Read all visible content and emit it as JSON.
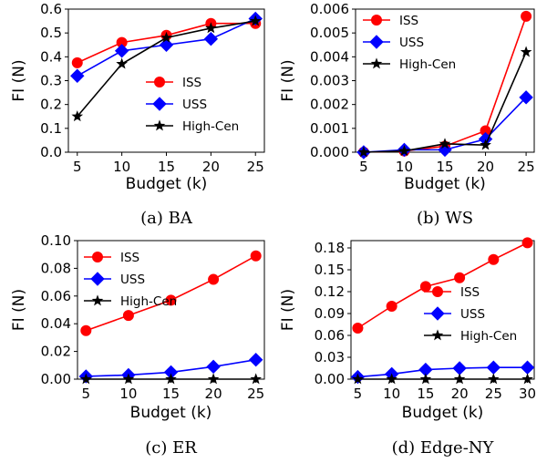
{
  "chart_data": [
    {
      "type": "line",
      "caption": "(a) BA",
      "xlabel": "Budget (k)",
      "ylabel": "FI (N)",
      "xlim": [
        4,
        26
      ],
      "ylim": [
        0.0,
        0.6
      ],
      "xticks": [
        5,
        10,
        15,
        20,
        25
      ],
      "yticks": [
        0.0,
        0.1,
        0.2,
        0.3,
        0.4,
        0.5,
        0.6
      ],
      "ytick_labels": [
        "0.0",
        "0.1",
        "0.2",
        "0.3",
        "0.4",
        "0.5",
        "0.6"
      ],
      "legend_position": "lower-right",
      "x": [
        5,
        10,
        15,
        20,
        25
      ],
      "series": [
        {
          "name": "ISS",
          "color": "#ff0000",
          "marker": "circle",
          "values": [
            0.375,
            0.46,
            0.49,
            0.54,
            0.54
          ]
        },
        {
          "name": "USS",
          "color": "#0000ff",
          "marker": "diamond",
          "values": [
            0.32,
            0.425,
            0.45,
            0.475,
            0.56
          ]
        },
        {
          "name": "High-Cen",
          "color": "#000000",
          "marker": "star",
          "values": [
            0.15,
            0.37,
            0.48,
            0.52,
            0.55
          ]
        }
      ]
    },
    {
      "type": "line",
      "caption": "(b) WS",
      "xlabel": "Budget (k)",
      "ylabel": "FI (N)",
      "xlim": [
        4,
        26
      ],
      "ylim": [
        0.0,
        0.006
      ],
      "xticks": [
        5,
        10,
        15,
        20,
        25
      ],
      "yticks": [
        0.0,
        0.001,
        0.002,
        0.003,
        0.004,
        0.005,
        0.006
      ],
      "ytick_labels": [
        "0.000",
        "0.001",
        "0.002",
        "0.003",
        "0.004",
        "0.005",
        "0.006"
      ],
      "legend_position": "upper-left",
      "x": [
        5,
        10,
        15,
        20,
        25
      ],
      "series": [
        {
          "name": "ISS",
          "color": "#ff0000",
          "marker": "circle",
          "values": [
            0.0,
            5e-05,
            0.00025,
            0.0009,
            0.0057
          ]
        },
        {
          "name": "USS",
          "color": "#0000ff",
          "marker": "diamond",
          "values": [
            0.0,
            0.0001,
            0.0001,
            0.00055,
            0.0023
          ]
        },
        {
          "name": "High-Cen",
          "color": "#000000",
          "marker": "star",
          "values": [
            0.0,
            5e-05,
            0.00035,
            0.0003,
            0.0042
          ]
        }
      ]
    },
    {
      "type": "line",
      "caption": "(c) ER",
      "xlabel": "Budget (k)",
      "ylabel": "FI (N)",
      "xlim": [
        4,
        26
      ],
      "ylim": [
        0.0,
        0.1
      ],
      "xticks": [
        5,
        10,
        15,
        20,
        25
      ],
      "yticks": [
        0.0,
        0.02,
        0.04,
        0.06,
        0.08,
        0.1
      ],
      "ytick_labels": [
        "0.00",
        "0.02",
        "0.04",
        "0.06",
        "0.08",
        "0.10"
      ],
      "legend_position": "upper-left",
      "x": [
        5,
        10,
        15,
        20,
        25
      ],
      "series": [
        {
          "name": "ISS",
          "color": "#ff0000",
          "marker": "circle",
          "values": [
            0.035,
            0.046,
            0.057,
            0.072,
            0.089
          ]
        },
        {
          "name": "USS",
          "color": "#0000ff",
          "marker": "diamond",
          "values": [
            0.002,
            0.003,
            0.005,
            0.009,
            0.014
          ]
        },
        {
          "name": "High-Cen",
          "color": "#000000",
          "marker": "star",
          "values": [
            0.0,
            0.0,
            0.0,
            0.0,
            0.0
          ]
        }
      ]
    },
    {
      "type": "line",
      "caption": "(d) Edge-NY",
      "xlabel": "Budget (k)",
      "ylabel": "FI (N)",
      "xlim": [
        4,
        31
      ],
      "ylim": [
        0.0,
        0.19
      ],
      "xticks": [
        5,
        10,
        15,
        20,
        25,
        30
      ],
      "yticks": [
        0.0,
        0.03,
        0.06,
        0.09,
        0.12,
        0.15,
        0.18
      ],
      "ytick_labels": [
        "0.00",
        "0.03",
        "0.06",
        "0.09",
        "0.12",
        "0.15",
        "0.18"
      ],
      "legend_position": "center-right",
      "x": [
        5,
        10,
        15,
        20,
        25,
        30
      ],
      "series": [
        {
          "name": "ISS",
          "color": "#ff0000",
          "marker": "circle",
          "values": [
            0.07,
            0.1,
            0.127,
            0.139,
            0.164,
            0.187
          ]
        },
        {
          "name": "USS",
          "color": "#0000ff",
          "marker": "diamond",
          "values": [
            0.003,
            0.007,
            0.013,
            0.015,
            0.016,
            0.016
          ]
        },
        {
          "name": "High-Cen",
          "color": "#000000",
          "marker": "star",
          "values": [
            0.0,
            0.0,
            0.0,
            0.0,
            0.0,
            0.0
          ]
        }
      ]
    }
  ]
}
